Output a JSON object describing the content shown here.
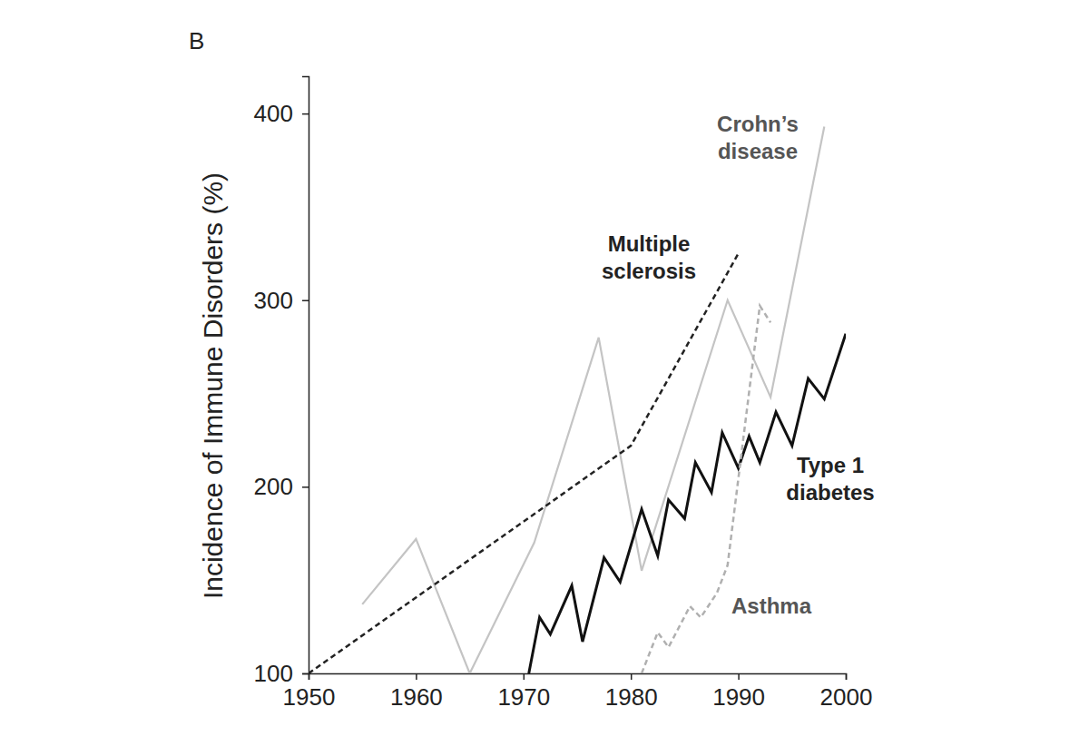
{
  "chart_data": {
    "type": "line",
    "title": "B",
    "y_label": "Incidence of Immune Disorders (%)",
    "xlim": [
      1950,
      2000
    ],
    "xticks": [
      1950,
      1960,
      1970,
      1980,
      1990,
      2000
    ],
    "ylim": [
      100,
      420
    ],
    "yticks": [
      100,
      200,
      300,
      400
    ],
    "grid": false,
    "series": [
      {
        "name": "Crohn’s\ndisease",
        "color": "#c4c4c4",
        "line_style": "solid",
        "x": [
          1955,
          1960,
          1965,
          1971,
          1977,
          1981,
          1989,
          1993,
          1998
        ],
        "values": [
          137,
          172,
          100,
          170,
          280,
          155,
          300,
          248,
          393
        ]
      },
      {
        "name": "Multiple\nsclerosis",
        "color": "#222222",
        "line_style": "dashed",
        "x": [
          1950,
          1980,
          1990
        ],
        "values": [
          100,
          222,
          325
        ]
      },
      {
        "name": "Type 1\ndiabetes",
        "color": "#111111",
        "line_style": "solid",
        "x": [
          1970.5,
          1971.5,
          1972.5,
          1974.5,
          1975.5,
          1977.5,
          1979,
          1981,
          1982.5,
          1983.5,
          1985,
          1986,
          1987.5,
          1988.5,
          1990,
          1991,
          1992,
          1993.5,
          1995,
          1996.5,
          1998,
          2000
        ],
        "values": [
          100,
          130,
          121,
          147,
          117,
          162,
          149,
          188,
          163,
          193,
          183,
          213,
          197,
          229,
          210,
          227,
          213,
          240,
          222,
          258,
          247,
          282
        ]
      },
      {
        "name": "Asthma",
        "color": "#b0b0b0",
        "line_style": "dashed",
        "x": [
          1981,
          1982.5,
          1983.5,
          1985.5,
          1986.5,
          1988,
          1989,
          1992,
          1993
        ],
        "values": [
          100,
          122,
          114,
          136,
          130,
          143,
          158,
          297,
          288
        ]
      }
    ]
  }
}
